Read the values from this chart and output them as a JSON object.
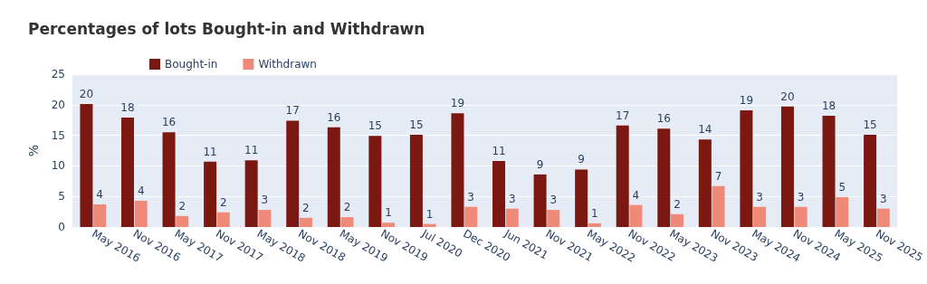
{
  "chart_data": {
    "type": "bar",
    "title": "Percentages of lots Bought-in and Withdrawn",
    "ylabel": "%",
    "categories": [
      "May 2016",
      "Nov 2016",
      "May 2017",
      "Nov 2017",
      "May 2018",
      "Nov 2018",
      "May 2019",
      "Nov 2019",
      "Jul 2020",
      "Dec 2020",
      "Jun 2021",
      "Nov 2021",
      "May 2022",
      "Nov 2022",
      "May 2023",
      "Nov 2023",
      "May 2024",
      "Nov 2024",
      "May 2025",
      "Nov 2025"
    ],
    "series": [
      {
        "name": "Bought-in",
        "color": "#7b1811",
        "values": [
          20.1,
          17.9,
          15.5,
          10.7,
          10.9,
          17.4,
          16.3,
          14.9,
          15.1,
          18.6,
          10.8,
          8.6,
          9.4,
          16.6,
          16.1,
          14.3,
          19.1,
          19.7,
          18.2,
          15.1
        ],
        "value_labels": [
          "20",
          "18",
          "16",
          "11",
          "11",
          "17",
          "16",
          "15",
          "15",
          "19",
          "11",
          "9",
          "9",
          "17",
          "16",
          "14",
          "19",
          "20",
          "18",
          "15"
        ]
      },
      {
        "name": "Withdrawn",
        "color": "#ef8a78",
        "values": [
          3.7,
          4.3,
          1.8,
          2.4,
          2.8,
          1.5,
          1.6,
          0.7,
          0.5,
          3.3,
          3.0,
          2.8,
          0.6,
          3.6,
          2.1,
          6.7,
          3.3,
          3.3,
          4.9,
          3.0
        ],
        "value_labels": [
          "4",
          "4",
          "2",
          "2",
          "3",
          "2",
          "2",
          "1",
          "1",
          "3",
          "3",
          "3",
          "1",
          "4",
          "2",
          "7",
          "3",
          "3",
          "5",
          "3"
        ]
      }
    ],
    "ylim": [
      0,
      25
    ],
    "yticks": [
      0,
      5,
      10,
      15,
      20,
      25
    ],
    "grid": "y",
    "legend": "top left"
  }
}
